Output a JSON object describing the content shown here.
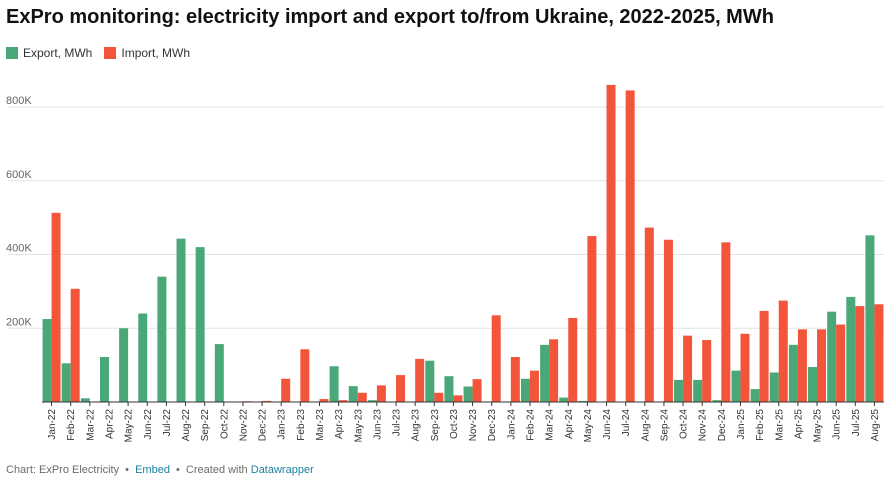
{
  "title": "ExPro monitoring: electricity import and export to/from Ukraine, 2022-2025, MWh",
  "footer": {
    "source": "Chart: ExPro Electricity",
    "dot": "•",
    "embed": "Embed",
    "created": "Created with",
    "tool": "Datawrapper"
  },
  "colors": {
    "export": "#4aa778",
    "import": "#f3553b",
    "grid": "#e3e3e3",
    "axis": "#333333"
  },
  "chart_data": {
    "type": "bar",
    "categories": [
      "Jan-22",
      "Feb-22",
      "Mar-22",
      "Apr-22",
      "May-22",
      "Jun-22",
      "Jul-22",
      "Aug-22",
      "Sep-22",
      "Oct-22",
      "Nov-22",
      "Dec-22",
      "Jan-23",
      "Feb-23",
      "Mar-23",
      "Apr-23",
      "May-23",
      "Jun-23",
      "Jul-23",
      "Aug-23",
      "Sep-23",
      "Oct-23",
      "Nov-23",
      "Dec-23",
      "Jan-24",
      "Feb-24",
      "Mar-24",
      "Apr-24",
      "May-24",
      "Jun-24",
      "Jul-24",
      "Aug-24",
      "Sep-24",
      "Oct-24",
      "Nov-24",
      "Dec-24",
      "Jan-25",
      "Feb-25",
      "Mar-25",
      "Apr-25",
      "May-25",
      "Jun-25",
      "Jul-25",
      "Aug-25"
    ],
    "series": [
      {
        "name": "Export, MWh",
        "values": [
          225000,
          105000,
          10000,
          122000,
          200000,
          240000,
          340000,
          443000,
          420000,
          157000,
          0,
          0,
          0,
          0,
          0,
          97000,
          43000,
          5000,
          0,
          0,
          112000,
          70000,
          42000,
          0,
          0,
          63000,
          155000,
          12000,
          3000,
          0,
          0,
          0,
          0,
          60000,
          60000,
          5000,
          85000,
          35000,
          80000,
          155000,
          95000,
          245000,
          285000,
          452000
        ]
      },
      {
        "name": "Import, MWh",
        "values": [
          513000,
          307000,
          0,
          0,
          0,
          0,
          0,
          0,
          0,
          0,
          2000,
          3000,
          63000,
          143000,
          8000,
          5000,
          25000,
          45000,
          73000,
          117000,
          25000,
          18000,
          62000,
          235000,
          122000,
          85000,
          170000,
          228000,
          450000,
          860000,
          845000,
          473000,
          440000,
          180000,
          168000,
          433000,
          185000,
          247000,
          275000,
          197000,
          197000,
          210000,
          260000,
          265000
        ]
      }
    ],
    "y_ticks": [
      200000,
      400000,
      600000,
      800000
    ],
    "y_tick_labels": [
      "200K",
      "400K",
      "600K",
      "800K"
    ],
    "ylim": [
      0,
      890000
    ],
    "grid": true,
    "legend": "top-left"
  }
}
